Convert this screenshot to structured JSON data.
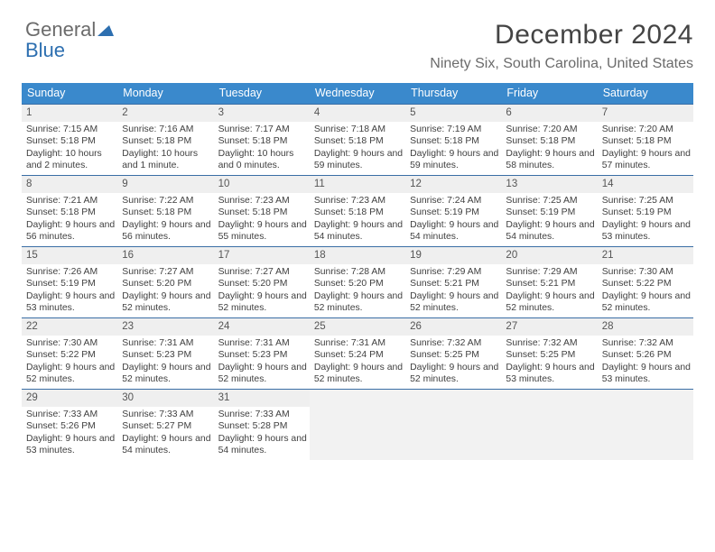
{
  "logo": {
    "part1": "General",
    "part2": "Blue"
  },
  "header": {
    "month_title": "December 2024",
    "location": "Ninety Six, South Carolina, United States"
  },
  "colors": {
    "header_bar": "#3a89cc",
    "week_rule": "#3a6ea5",
    "daynum_bg": "#efefef",
    "empty_bg": "#f2f2f2",
    "text": "#404040",
    "logo_gray": "#6b6b6b",
    "logo_blue": "#2d6fb0"
  },
  "daynames": [
    "Sunday",
    "Monday",
    "Tuesday",
    "Wednesday",
    "Thursday",
    "Friday",
    "Saturday"
  ],
  "weeks": [
    [
      {
        "n": "1",
        "sr": "Sunrise: 7:15 AM",
        "ss": "Sunset: 5:18 PM",
        "dl": "Daylight: 10 hours and 2 minutes."
      },
      {
        "n": "2",
        "sr": "Sunrise: 7:16 AM",
        "ss": "Sunset: 5:18 PM",
        "dl": "Daylight: 10 hours and 1 minute."
      },
      {
        "n": "3",
        "sr": "Sunrise: 7:17 AM",
        "ss": "Sunset: 5:18 PM",
        "dl": "Daylight: 10 hours and 0 minutes."
      },
      {
        "n": "4",
        "sr": "Sunrise: 7:18 AM",
        "ss": "Sunset: 5:18 PM",
        "dl": "Daylight: 9 hours and 59 minutes."
      },
      {
        "n": "5",
        "sr": "Sunrise: 7:19 AM",
        "ss": "Sunset: 5:18 PM",
        "dl": "Daylight: 9 hours and 59 minutes."
      },
      {
        "n": "6",
        "sr": "Sunrise: 7:20 AM",
        "ss": "Sunset: 5:18 PM",
        "dl": "Daylight: 9 hours and 58 minutes."
      },
      {
        "n": "7",
        "sr": "Sunrise: 7:20 AM",
        "ss": "Sunset: 5:18 PM",
        "dl": "Daylight: 9 hours and 57 minutes."
      }
    ],
    [
      {
        "n": "8",
        "sr": "Sunrise: 7:21 AM",
        "ss": "Sunset: 5:18 PM",
        "dl": "Daylight: 9 hours and 56 minutes."
      },
      {
        "n": "9",
        "sr": "Sunrise: 7:22 AM",
        "ss": "Sunset: 5:18 PM",
        "dl": "Daylight: 9 hours and 56 minutes."
      },
      {
        "n": "10",
        "sr": "Sunrise: 7:23 AM",
        "ss": "Sunset: 5:18 PM",
        "dl": "Daylight: 9 hours and 55 minutes."
      },
      {
        "n": "11",
        "sr": "Sunrise: 7:23 AM",
        "ss": "Sunset: 5:18 PM",
        "dl": "Daylight: 9 hours and 54 minutes."
      },
      {
        "n": "12",
        "sr": "Sunrise: 7:24 AM",
        "ss": "Sunset: 5:19 PM",
        "dl": "Daylight: 9 hours and 54 minutes."
      },
      {
        "n": "13",
        "sr": "Sunrise: 7:25 AM",
        "ss": "Sunset: 5:19 PM",
        "dl": "Daylight: 9 hours and 54 minutes."
      },
      {
        "n": "14",
        "sr": "Sunrise: 7:25 AM",
        "ss": "Sunset: 5:19 PM",
        "dl": "Daylight: 9 hours and 53 minutes."
      }
    ],
    [
      {
        "n": "15",
        "sr": "Sunrise: 7:26 AM",
        "ss": "Sunset: 5:19 PM",
        "dl": "Daylight: 9 hours and 53 minutes."
      },
      {
        "n": "16",
        "sr": "Sunrise: 7:27 AM",
        "ss": "Sunset: 5:20 PM",
        "dl": "Daylight: 9 hours and 52 minutes."
      },
      {
        "n": "17",
        "sr": "Sunrise: 7:27 AM",
        "ss": "Sunset: 5:20 PM",
        "dl": "Daylight: 9 hours and 52 minutes."
      },
      {
        "n": "18",
        "sr": "Sunrise: 7:28 AM",
        "ss": "Sunset: 5:20 PM",
        "dl": "Daylight: 9 hours and 52 minutes."
      },
      {
        "n": "19",
        "sr": "Sunrise: 7:29 AM",
        "ss": "Sunset: 5:21 PM",
        "dl": "Daylight: 9 hours and 52 minutes."
      },
      {
        "n": "20",
        "sr": "Sunrise: 7:29 AM",
        "ss": "Sunset: 5:21 PM",
        "dl": "Daylight: 9 hours and 52 minutes."
      },
      {
        "n": "21",
        "sr": "Sunrise: 7:30 AM",
        "ss": "Sunset: 5:22 PM",
        "dl": "Daylight: 9 hours and 52 minutes."
      }
    ],
    [
      {
        "n": "22",
        "sr": "Sunrise: 7:30 AM",
        "ss": "Sunset: 5:22 PM",
        "dl": "Daylight: 9 hours and 52 minutes."
      },
      {
        "n": "23",
        "sr": "Sunrise: 7:31 AM",
        "ss": "Sunset: 5:23 PM",
        "dl": "Daylight: 9 hours and 52 minutes."
      },
      {
        "n": "24",
        "sr": "Sunrise: 7:31 AM",
        "ss": "Sunset: 5:23 PM",
        "dl": "Daylight: 9 hours and 52 minutes."
      },
      {
        "n": "25",
        "sr": "Sunrise: 7:31 AM",
        "ss": "Sunset: 5:24 PM",
        "dl": "Daylight: 9 hours and 52 minutes."
      },
      {
        "n": "26",
        "sr": "Sunrise: 7:32 AM",
        "ss": "Sunset: 5:25 PM",
        "dl": "Daylight: 9 hours and 52 minutes."
      },
      {
        "n": "27",
        "sr": "Sunrise: 7:32 AM",
        "ss": "Sunset: 5:25 PM",
        "dl": "Daylight: 9 hours and 53 minutes."
      },
      {
        "n": "28",
        "sr": "Sunrise: 7:32 AM",
        "ss": "Sunset: 5:26 PM",
        "dl": "Daylight: 9 hours and 53 minutes."
      }
    ],
    [
      {
        "n": "29",
        "sr": "Sunrise: 7:33 AM",
        "ss": "Sunset: 5:26 PM",
        "dl": "Daylight: 9 hours and 53 minutes."
      },
      {
        "n": "30",
        "sr": "Sunrise: 7:33 AM",
        "ss": "Sunset: 5:27 PM",
        "dl": "Daylight: 9 hours and 54 minutes."
      },
      {
        "n": "31",
        "sr": "Sunrise: 7:33 AM",
        "ss": "Sunset: 5:28 PM",
        "dl": "Daylight: 9 hours and 54 minutes."
      },
      {
        "empty": true
      },
      {
        "empty": true
      },
      {
        "empty": true
      },
      {
        "empty": true
      }
    ]
  ]
}
